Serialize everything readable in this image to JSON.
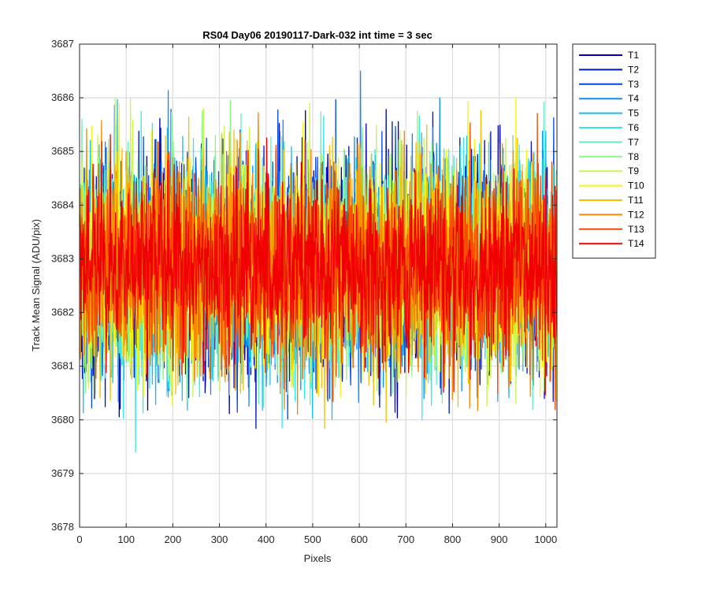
{
  "chart_data": {
    "type": "line",
    "title": "RS04 Day06 20190117-Dark-032 int time = 3 sec",
    "xlabel": "Pixels",
    "ylabel": "Track Mean Signal (ADU/pix)",
    "xlim": [
      0,
      1024
    ],
    "ylim": [
      3678,
      3687
    ],
    "xticks": [
      0,
      100,
      200,
      300,
      400,
      500,
      600,
      700,
      800,
      900,
      1000
    ],
    "yticks": [
      3678,
      3679,
      3680,
      3681,
      3682,
      3683,
      3684,
      3685,
      3686,
      3687
    ],
    "grid": true,
    "legend_position": "outside-top-right",
    "n_points": 1024,
    "series": [
      {
        "name": "T1",
        "color": "#0000A6",
        "mean": 3682.85,
        "spread": 1.15,
        "min": 3679.9,
        "max": 3686.2
      },
      {
        "name": "T2",
        "color": "#0013C8",
        "mean": 3682.85,
        "spread": 1.15,
        "min": 3679.5,
        "max": 3686.1
      },
      {
        "name": "T3",
        "color": "#0046E6",
        "mean": 3682.85,
        "spread": 1.15,
        "min": 3680.0,
        "max": 3686.0
      },
      {
        "name": "T4",
        "color": "#0E8CFF",
        "mean": 3682.85,
        "spread": 1.15,
        "min": 3680.2,
        "max": 3686.5
      },
      {
        "name": "T5",
        "color": "#16BEF0",
        "mean": 3682.85,
        "spread": 1.15,
        "min": 3679.9,
        "max": 3686.0
      },
      {
        "name": "T6",
        "color": "#2EEAF0",
        "mean": 3682.85,
        "spread": 1.15,
        "min": 3678.8,
        "max": 3685.9
      },
      {
        "name": "T7",
        "color": "#60F0C4",
        "mean": 3682.85,
        "spread": 1.15,
        "min": 3680.1,
        "max": 3686.0
      },
      {
        "name": "T8",
        "color": "#8CF58A",
        "mean": 3682.85,
        "spread": 1.15,
        "min": 3680.3,
        "max": 3686.3
      },
      {
        "name": "T9",
        "color": "#C8F550",
        "mean": 3682.85,
        "spread": 1.15,
        "min": 3680.2,
        "max": 3686.5
      },
      {
        "name": "T10",
        "color": "#F5F514",
        "mean": 3682.85,
        "spread": 1.15,
        "min": 3679.9,
        "max": 3686.2
      },
      {
        "name": "T11",
        "color": "#F7C000",
        "mean": 3682.85,
        "spread": 1.15,
        "min": 3679.8,
        "max": 3685.9
      },
      {
        "name": "T12",
        "color": "#F58A00",
        "mean": 3682.85,
        "spread": 1.1,
        "min": 3679.1,
        "max": 3685.8
      },
      {
        "name": "T13",
        "color": "#F54A00",
        "mean": 3682.85,
        "spread": 1.05,
        "min": 3679.5,
        "max": 3685.8
      },
      {
        "name": "T14",
        "color": "#F00000",
        "mean": 3682.85,
        "spread": 0.95,
        "min": 3680.0,
        "max": 3685.6
      }
    ]
  }
}
